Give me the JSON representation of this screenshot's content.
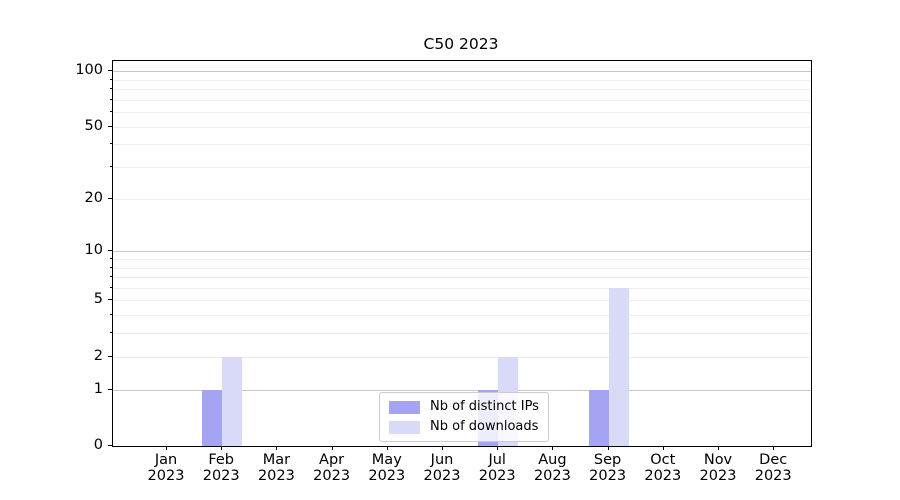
{
  "title": "C50 2023",
  "legend": {
    "items": [
      {
        "label": "Nb of distinct IPs",
        "color": "#a4a4f3"
      },
      {
        "label": "Nb of downloads",
        "color": "#d9d9f8"
      }
    ]
  },
  "colors": {
    "background": "#ffffff",
    "spine": "#000000",
    "major_grid": "#c8c8c8",
    "minor_grid": "#ececec"
  },
  "y_axis": {
    "scale": "log10(1+v)",
    "labeled_ticks": [
      0,
      1,
      2,
      5,
      10,
      20,
      50,
      100
    ],
    "major_gridlines": [
      1,
      10,
      100
    ],
    "minor_gridlines": [
      2,
      3,
      4,
      5,
      6,
      7,
      8,
      9,
      20,
      30,
      40,
      50,
      60,
      70,
      80,
      90
    ]
  },
  "x_axis": {
    "months": [
      "Jan",
      "Feb",
      "Mar",
      "Apr",
      "May",
      "Jun",
      "Jul",
      "Aug",
      "Sep",
      "Oct",
      "Nov",
      "Dec"
    ],
    "year": "2023"
  },
  "chart_data": {
    "type": "bar",
    "title": "C50 2023",
    "categories": [
      "Jan 2023",
      "Feb 2023",
      "Mar 2023",
      "Apr 2023",
      "May 2023",
      "Jun 2023",
      "Jul 2023",
      "Aug 2023",
      "Sep 2023",
      "Oct 2023",
      "Nov 2023",
      "Dec 2023"
    ],
    "series": [
      {
        "name": "Nb of distinct IPs",
        "color": "#a4a4f3",
        "values": [
          0,
          1,
          0,
          0,
          0,
          0,
          1,
          0,
          1,
          0,
          0,
          0
        ]
      },
      {
        "name": "Nb of downloads",
        "color": "#d9d9f8",
        "values": [
          0,
          2,
          0,
          0,
          0,
          0,
          2,
          0,
          6,
          0,
          0,
          0
        ]
      }
    ],
    "yscale": "symlog (log10(1+v))",
    "ylim": [
      0,
      113
    ],
    "xlabel": "",
    "ylabel": "",
    "grid": "horizontal",
    "legend_position": "lower center"
  }
}
